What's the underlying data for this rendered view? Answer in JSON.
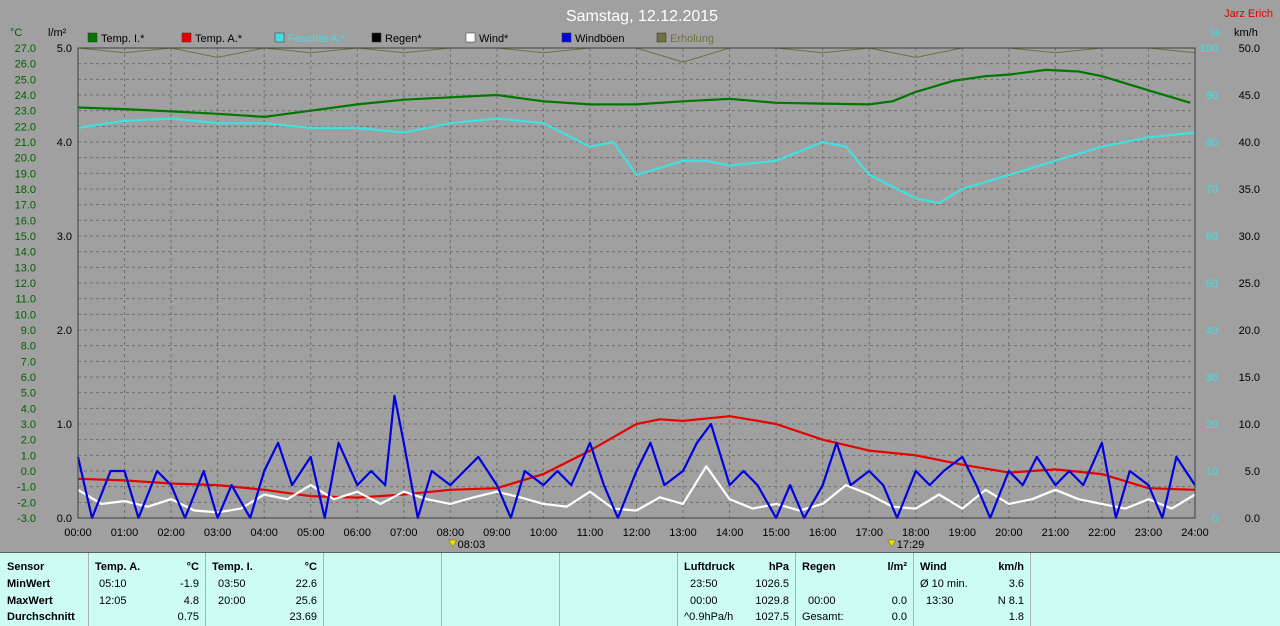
{
  "window": {
    "title": "Samstag, 12.12.2015",
    "author": "Jarz Erich"
  },
  "units": {
    "left1": "°C",
    "left2": "l/m²",
    "right1": "%",
    "right2": "km/h"
  },
  "chart_data": {
    "type": "line",
    "title": "Samstag, 12.12.2015",
    "x_ticks": [
      "00:00",
      "01:00",
      "02:00",
      "03:00",
      "04:00",
      "05:00",
      "06:00",
      "07:00",
      "08:00",
      "09:00",
      "10:00",
      "11:00",
      "12:00",
      "13:00",
      "14:00",
      "15:00",
      "16:00",
      "17:00",
      "18:00",
      "19:00",
      "20:00",
      "21:00",
      "22:00",
      "23:00",
      "24:00"
    ],
    "sunrise": "08:03",
    "sunset": "17:29",
    "axes": {
      "temp_c": {
        "min": -3,
        "max": 27,
        "step": 1
      },
      "rain_l": {
        "min": 0,
        "max": 5,
        "step": 1
      },
      "humidity_pct": {
        "min": 0,
        "max": 100,
        "step": 10
      },
      "wind_kmh": {
        "min": 0,
        "max": 50,
        "step": 5
      }
    },
    "legend": [
      {
        "name": "Temp. I.*",
        "color": "#007800"
      },
      {
        "name": "Temp. A.*",
        "color": "#e80000"
      },
      {
        "name": "Feuchte A.*",
        "color": "#40e0e0"
      },
      {
        "name": "Regen*",
        "color": "#000000"
      },
      {
        "name": "Wind*",
        "color": "#ffffff"
      },
      {
        "name": "Windböen",
        "color": "#0000e0"
      },
      {
        "name": "Erholung",
        "color": "#707040"
      }
    ],
    "series": [
      {
        "name": "Temp. I.*",
        "axis": "temp_c",
        "color": "#007800",
        "points": [
          [
            0,
            23.2
          ],
          [
            1,
            23.1
          ],
          [
            2,
            22.95
          ],
          [
            3,
            22.8
          ],
          [
            4,
            22.6
          ],
          [
            5,
            23.0
          ],
          [
            6,
            23.4
          ],
          [
            7,
            23.7
          ],
          [
            8,
            23.85
          ],
          [
            9,
            24.0
          ],
          [
            10,
            23.6
          ],
          [
            11,
            23.4
          ],
          [
            12,
            23.4
          ],
          [
            13,
            23.6
          ],
          [
            14,
            23.75
          ],
          [
            15,
            23.5
          ],
          [
            16,
            23.45
          ],
          [
            17,
            23.4
          ],
          [
            17.5,
            23.6
          ],
          [
            18,
            24.2
          ],
          [
            18.8,
            24.9
          ],
          [
            19.5,
            25.2
          ],
          [
            20,
            25.3
          ],
          [
            20.8,
            25.6
          ],
          [
            21.5,
            25.5
          ],
          [
            22,
            25.2
          ],
          [
            23,
            24.3
          ],
          [
            23.9,
            23.5
          ]
        ]
      },
      {
        "name": "Temp. A.*",
        "axis": "temp_c",
        "color": "#e80000",
        "points": [
          [
            0,
            -0.5
          ],
          [
            1,
            -0.6
          ],
          [
            2,
            -0.8
          ],
          [
            3,
            -0.9
          ],
          [
            4,
            -1.2
          ],
          [
            5,
            -1.6
          ],
          [
            6,
            -1.7
          ],
          [
            7,
            -1.5
          ],
          [
            8,
            -1.2
          ],
          [
            9,
            -1.1
          ],
          [
            10,
            -0.2
          ],
          [
            11,
            1.3
          ],
          [
            12,
            3.0
          ],
          [
            12.5,
            3.3
          ],
          [
            13,
            3.2
          ],
          [
            14,
            3.5
          ],
          [
            15,
            3.0
          ],
          [
            16,
            2.0
          ],
          [
            17,
            1.3
          ],
          [
            18,
            1.0
          ],
          [
            19,
            0.4
          ],
          [
            20,
            -0.1
          ],
          [
            21,
            0.1
          ],
          [
            22,
            -0.2
          ],
          [
            23,
            -1.1
          ],
          [
            24,
            -1.2
          ]
        ]
      },
      {
        "name": "Feuchte A.*",
        "axis": "humidity_pct",
        "color": "#40e0e0",
        "points": [
          [
            0,
            83
          ],
          [
            1,
            84.5
          ],
          [
            2,
            85
          ],
          [
            3,
            84
          ],
          [
            4,
            84
          ],
          [
            5,
            83
          ],
          [
            6,
            83
          ],
          [
            7,
            82
          ],
          [
            8,
            84
          ],
          [
            9,
            85
          ],
          [
            10,
            84
          ],
          [
            11,
            79
          ],
          [
            11.5,
            80
          ],
          [
            12,
            73
          ],
          [
            13,
            76
          ],
          [
            13.5,
            76
          ],
          [
            14,
            75
          ],
          [
            15,
            76
          ],
          [
            16,
            80
          ],
          [
            16.5,
            79
          ],
          [
            17,
            73
          ],
          [
            18,
            68
          ],
          [
            18.5,
            67
          ],
          [
            19,
            70
          ],
          [
            20,
            73
          ],
          [
            21,
            76
          ],
          [
            22,
            79
          ],
          [
            23,
            81
          ],
          [
            24,
            82
          ]
        ]
      },
      {
        "name": "Erholung",
        "axis": "humidity_pct",
        "color": "#707040",
        "points": [
          [
            0,
            100
          ],
          [
            1,
            99
          ],
          [
            2,
            100
          ],
          [
            3,
            98
          ],
          [
            4,
            100
          ],
          [
            5,
            99
          ],
          [
            6,
            100
          ],
          [
            7,
            99
          ],
          [
            8,
            100
          ],
          [
            9,
            100
          ],
          [
            10,
            99
          ],
          [
            11,
            100
          ],
          [
            12,
            100
          ],
          [
            13,
            97
          ],
          [
            14,
            100
          ],
          [
            15,
            100
          ],
          [
            16,
            99
          ],
          [
            17,
            100
          ],
          [
            18,
            98
          ],
          [
            19,
            100
          ],
          [
            20,
            100
          ],
          [
            21,
            99
          ],
          [
            22,
            100
          ],
          [
            23,
            100
          ],
          [
            24,
            99
          ]
        ]
      },
      {
        "name": "Wind*",
        "axis": "wind_kmh",
        "color": "#ffffff",
        "points": [
          [
            0,
            3
          ],
          [
            0.5,
            1.5
          ],
          [
            1,
            1.8
          ],
          [
            1.5,
            1.2
          ],
          [
            2,
            2
          ],
          [
            2.5,
            0.8
          ],
          [
            3,
            0.6
          ],
          [
            3.5,
            1
          ],
          [
            4,
            2.5
          ],
          [
            4.5,
            2
          ],
          [
            5,
            3.5
          ],
          [
            5.5,
            2
          ],
          [
            6,
            2.8
          ],
          [
            6.5,
            1.5
          ],
          [
            7,
            2.8
          ],
          [
            7.5,
            2
          ],
          [
            8,
            1.5
          ],
          [
            8.5,
            2.2
          ],
          [
            9,
            2.8
          ],
          [
            9.5,
            2.2
          ],
          [
            10,
            1.5
          ],
          [
            10.5,
            1.2
          ],
          [
            11,
            2.8
          ],
          [
            11.5,
            1
          ],
          [
            12,
            0.8
          ],
          [
            12.5,
            2.2
          ],
          [
            13,
            1.5
          ],
          [
            13.5,
            5.5
          ],
          [
            14,
            2
          ],
          [
            14.5,
            1
          ],
          [
            15,
            1.5
          ],
          [
            15.5,
            0.8
          ],
          [
            16,
            1.5
          ],
          [
            16.5,
            3.5
          ],
          [
            17,
            2.5
          ],
          [
            17.5,
            1.2
          ],
          [
            18,
            1
          ],
          [
            18.5,
            2.5
          ],
          [
            19,
            1
          ],
          [
            19.5,
            3
          ],
          [
            20,
            1.5
          ],
          [
            20.5,
            2
          ],
          [
            21,
            3
          ],
          [
            21.5,
            2
          ],
          [
            22,
            1.5
          ],
          [
            22.5,
            1
          ],
          [
            23,
            2
          ],
          [
            23.5,
            1
          ],
          [
            24,
            2.5
          ]
        ]
      },
      {
        "name": "Windböen",
        "axis": "wind_kmh",
        "color": "#0000e0",
        "points": [
          [
            0,
            6.5
          ],
          [
            0.3,
            0
          ],
          [
            0.7,
            5
          ],
          [
            1,
            5
          ],
          [
            1.3,
            0
          ],
          [
            1.7,
            5
          ],
          [
            2,
            3.5
          ],
          [
            2.3,
            0
          ],
          [
            2.7,
            5
          ],
          [
            3,
            0
          ],
          [
            3.3,
            3.5
          ],
          [
            3.7,
            0
          ],
          [
            4,
            5
          ],
          [
            4.3,
            8
          ],
          [
            4.6,
            3.5
          ],
          [
            5,
            6.5
          ],
          [
            5.3,
            0
          ],
          [
            5.6,
            8
          ],
          [
            6,
            3.5
          ],
          [
            6.3,
            5
          ],
          [
            6.6,
            3.5
          ],
          [
            6.8,
            13
          ],
          [
            7,
            8
          ],
          [
            7.3,
            0
          ],
          [
            7.6,
            5
          ],
          [
            8,
            3.5
          ],
          [
            8.3,
            5
          ],
          [
            8.6,
            6.5
          ],
          [
            9,
            3.5
          ],
          [
            9.3,
            0
          ],
          [
            9.6,
            5
          ],
          [
            10,
            3.5
          ],
          [
            10.3,
            5
          ],
          [
            10.6,
            3.5
          ],
          [
            11,
            8
          ],
          [
            11.3,
            3.5
          ],
          [
            11.6,
            0
          ],
          [
            12,
            5
          ],
          [
            12.3,
            8
          ],
          [
            12.6,
            3.5
          ],
          [
            13,
            5
          ],
          [
            13.3,
            8
          ],
          [
            13.6,
            10
          ],
          [
            14,
            3.5
          ],
          [
            14.3,
            5
          ],
          [
            14.6,
            3.5
          ],
          [
            15,
            0
          ],
          [
            15.3,
            3.5
          ],
          [
            15.6,
            0
          ],
          [
            16,
            3.5
          ],
          [
            16.3,
            8
          ],
          [
            16.6,
            3.5
          ],
          [
            17,
            5
          ],
          [
            17.3,
            3.5
          ],
          [
            17.6,
            0
          ],
          [
            18,
            5
          ],
          [
            18.3,
            3.5
          ],
          [
            18.6,
            5
          ],
          [
            19,
            6.5
          ],
          [
            19.3,
            3.5
          ],
          [
            19.6,
            0
          ],
          [
            20,
            5
          ],
          [
            20.3,
            3.5
          ],
          [
            20.6,
            6.5
          ],
          [
            21,
            3.5
          ],
          [
            21.3,
            5
          ],
          [
            21.6,
            3.5
          ],
          [
            22,
            8
          ],
          [
            22.3,
            0
          ],
          [
            22.6,
            5
          ],
          [
            23,
            3.5
          ],
          [
            23.3,
            0
          ],
          [
            23.6,
            6.5
          ],
          [
            24,
            3.5
          ]
        ]
      }
    ]
  },
  "summary": {
    "sensor": {
      "header": "Sensor",
      "rows": [
        "MinWert",
        "MaxWert",
        "Durchschnitt"
      ]
    },
    "temp_a": {
      "header": "Temp. A.",
      "unit": "°C",
      "rows": [
        {
          "time": "05:10",
          "value": "-1.9"
        },
        {
          "time": "12:05",
          "value": "4.8"
        },
        {
          "time": "",
          "value": "0.75"
        }
      ]
    },
    "temp_i": {
      "header": "Temp. I.",
      "unit": "°C",
      "rows": [
        {
          "time": "03:50",
          "value": "22.6"
        },
        {
          "time": "20:00",
          "value": "25.6"
        },
        {
          "time": "",
          "value": "23.69"
        }
      ]
    },
    "pressure": {
      "header": "Luftdruck",
      "unit": "hPa",
      "rows": [
        {
          "time": "23:50",
          "value": "1026.5"
        },
        {
          "time": "00:00",
          "value": "1029.8"
        },
        {
          "time": "^0.9hPa/h",
          "value": "1027.5"
        }
      ]
    },
    "rain": {
      "header": "Regen",
      "unit": "l/m²",
      "rows": [
        {
          "time": "",
          "value": ""
        },
        {
          "time": "00:00",
          "value": "0.0"
        },
        {
          "time": "Gesamt:",
          "value": "0.0"
        }
      ]
    },
    "wind": {
      "header": "Wind",
      "unit": "km/h",
      "rows": [
        {
          "time": "Ø 10 min.",
          "value": "3.6"
        },
        {
          "time": "13:30",
          "value": "N 8.1"
        },
        {
          "time": "",
          "value": "1.8"
        }
      ]
    }
  }
}
